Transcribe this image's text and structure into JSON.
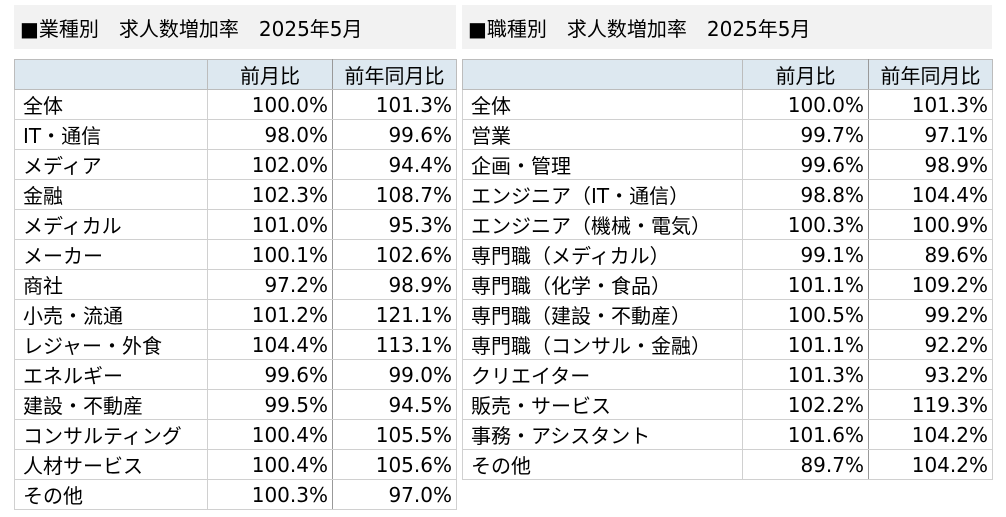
{
  "industry": {
    "title": "■業種別　求人数増加率　2025年5月",
    "columns": [
      "",
      "前月比",
      "前年同月比"
    ],
    "rows": [
      [
        "全体",
        "100.0%",
        "101.3%"
      ],
      [
        "IT・通信",
        "98.0%",
        "99.6%"
      ],
      [
        "メディア",
        "102.0%",
        "94.4%"
      ],
      [
        "金融",
        "102.3%",
        "108.7%"
      ],
      [
        "メディカル",
        "101.0%",
        "95.3%"
      ],
      [
        "メーカー",
        "100.1%",
        "102.6%"
      ],
      [
        "商社",
        "97.2%",
        "98.9%"
      ],
      [
        "小売・流通",
        "101.2%",
        "121.1%"
      ],
      [
        "レジャー・外食",
        "104.4%",
        "113.1%"
      ],
      [
        "エネルギー",
        "99.6%",
        "99.0%"
      ],
      [
        "建設・不動産",
        "99.5%",
        "94.5%"
      ],
      [
        "コンサルティング",
        "100.4%",
        "105.5%"
      ],
      [
        "人材サービス",
        "100.4%",
        "105.6%"
      ],
      [
        "その他",
        "100.3%",
        "97.0%"
      ]
    ]
  },
  "job": {
    "title": "■職種別　求人数増加率　2025年5月",
    "columns": [
      "",
      "前月比",
      "前年同月比"
    ],
    "rows": [
      [
        "全体",
        "100.0%",
        "101.3%"
      ],
      [
        "営業",
        "99.7%",
        "97.1%"
      ],
      [
        "企画・管理",
        "99.6%",
        "98.9%"
      ],
      [
        "エンジニア（IT・通信）",
        "98.8%",
        "104.4%"
      ],
      [
        "エンジニア（機械・電気）",
        "100.3%",
        "100.9%"
      ],
      [
        "専門職（メディカル）",
        "99.1%",
        "89.6%"
      ],
      [
        "専門職（化学・食品）",
        "101.1%",
        "109.2%"
      ],
      [
        "専門職（建設・不動産）",
        "100.5%",
        "99.2%"
      ],
      [
        "専門職（コンサル・金融）",
        "101.1%",
        "92.2%"
      ],
      [
        "クリエイター",
        "101.3%",
        "93.2%"
      ],
      [
        "販売・サービス",
        "102.2%",
        "119.3%"
      ],
      [
        "事務・アシスタント",
        "101.6%",
        "104.2%"
      ],
      [
        "その他",
        "89.7%",
        "104.2%"
      ]
    ]
  }
}
